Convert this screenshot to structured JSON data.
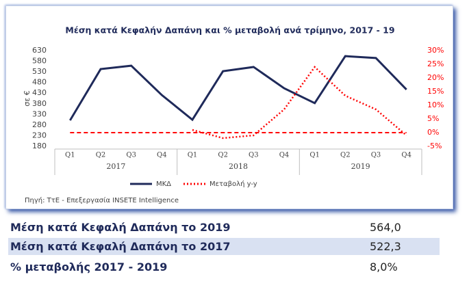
{
  "chart_data": {
    "type": "line",
    "title": "Μέση κατά Κεφαλήν Δαπάνη και % μεταβολή ανά τρίμηνο, 2017 - 19",
    "ylabel": "σε €",
    "categories": [
      "Q1",
      "Q2",
      "Q3",
      "Q4",
      "Q1",
      "Q2",
      "Q3",
      "Q4",
      "Q1",
      "Q2",
      "Q3",
      "Q4"
    ],
    "groups": [
      "2017",
      "2018",
      "2019"
    ],
    "series": [
      {
        "name": "ΜΚΔ",
        "color": "#1f2a5a",
        "values": [
          302,
          543,
          559,
          421,
          305,
          533,
          553,
          453,
          383,
          604,
          595,
          447
        ]
      },
      {
        "name": "Μεταβολή y-y",
        "color": "#ff0000",
        "axis": "y2",
        "values": [
          null,
          null,
          null,
          null,
          1,
          -2,
          -1,
          8.5,
          24,
          13.5,
          8.5,
          -1
        ]
      }
    ],
    "y2_reference": 0,
    "ylim": [
      180,
      630
    ],
    "yticks": [
      180,
      230,
      280,
      330,
      380,
      430,
      480,
      530,
      580,
      630
    ],
    "y2lim": [
      -5,
      30
    ],
    "y2ticks": [
      {
        "value": -5,
        "label": "-5%"
      },
      {
        "value": 0,
        "label": "0%"
      },
      {
        "value": 5,
        "label": "5%"
      },
      {
        "value": 10,
        "label": "10%"
      },
      {
        "value": 15,
        "label": "15%"
      },
      {
        "value": 20,
        "label": "20%"
      },
      {
        "value": 25,
        "label": "25%"
      },
      {
        "value": 30,
        "label": "30%"
      }
    ],
    "source": "Πηγή: ΤτΕ - Επεξεργασία INSETE Intelligence"
  },
  "table": {
    "rows": [
      [
        "Μέση κατά Κεφαλή Δαπάνη το 2019",
        "564,0"
      ],
      [
        "Μέση κατά Κεφαλή Δαπάνη το 2017",
        "522,3"
      ],
      [
        "% μεταβολής 2017 - 2019",
        "8,0%"
      ]
    ]
  }
}
